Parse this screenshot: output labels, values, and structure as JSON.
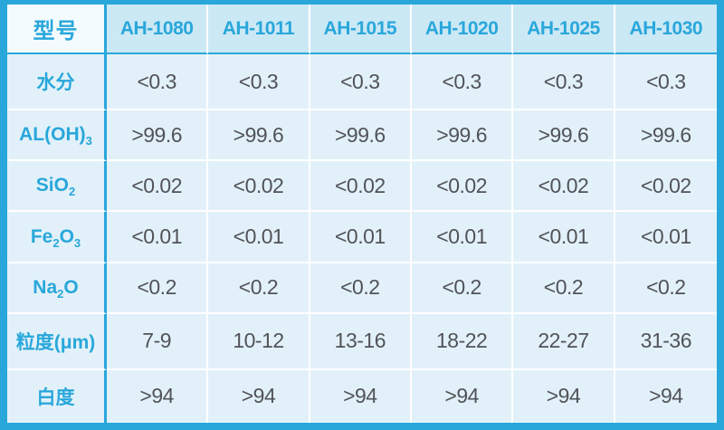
{
  "colors": {
    "accent_cyan": "#29a7db",
    "header_bg": "#cbe8f5",
    "corner_bg": "#f4fbfe",
    "cell_bg": "#e2f1f9",
    "label_text": "#29a7db",
    "value_text": "#515358",
    "grid_line": "#ffffff"
  },
  "chart_data": {
    "type": "table",
    "corner_label": "型号",
    "columns": [
      "AH-1080",
      "AH-1011",
      "AH-1015",
      "AH-1020",
      "AH-1025",
      "AH-1030"
    ],
    "rows": [
      {
        "label": "水分",
        "label_parts": [
          {
            "t": "水分"
          }
        ],
        "values": [
          "<0.3",
          "<0.3",
          "<0.3",
          "<0.3",
          "<0.3",
          "<0.3"
        ]
      },
      {
        "label": "AL(OH)3",
        "label_parts": [
          {
            "t": "AL(OH)"
          },
          {
            "t": "3",
            "sub": true
          }
        ],
        "values": [
          ">99.6",
          ">99.6",
          ">99.6",
          ">99.6",
          ">99.6",
          ">99.6"
        ]
      },
      {
        "label": "SiO2",
        "label_parts": [
          {
            "t": "SiO"
          },
          {
            "t": "2",
            "sub": true
          }
        ],
        "values": [
          "<0.02",
          "<0.02",
          "<0.02",
          "<0.02",
          "<0.02",
          "<0.02"
        ]
      },
      {
        "label": "Fe2O3",
        "label_parts": [
          {
            "t": "Fe"
          },
          {
            "t": "2",
            "sub": true
          },
          {
            "t": "O"
          },
          {
            "t": "3",
            "sub": true
          }
        ],
        "values": [
          "<0.01",
          "<0.01",
          "<0.01",
          "<0.01",
          "<0.01",
          "<0.01"
        ]
      },
      {
        "label": "Na2O",
        "label_parts": [
          {
            "t": "Na"
          },
          {
            "t": "2",
            "sub": true
          },
          {
            "t": "O"
          }
        ],
        "values": [
          "<0.2",
          "<0.2",
          "<0.2",
          "<0.2",
          "<0.2",
          "<0.2"
        ]
      },
      {
        "label": "粒度(μm)",
        "label_parts": [
          {
            "t": "粒度(μm)"
          }
        ],
        "values": [
          "7-9",
          "10-12",
          "13-16",
          "18-22",
          "22-27",
          "31-36"
        ]
      },
      {
        "label": "白度",
        "label_parts": [
          {
            "t": "白度"
          }
        ],
        "values": [
          ">94",
          ">94",
          ">94",
          ">94",
          ">94",
          ">94"
        ]
      }
    ]
  }
}
